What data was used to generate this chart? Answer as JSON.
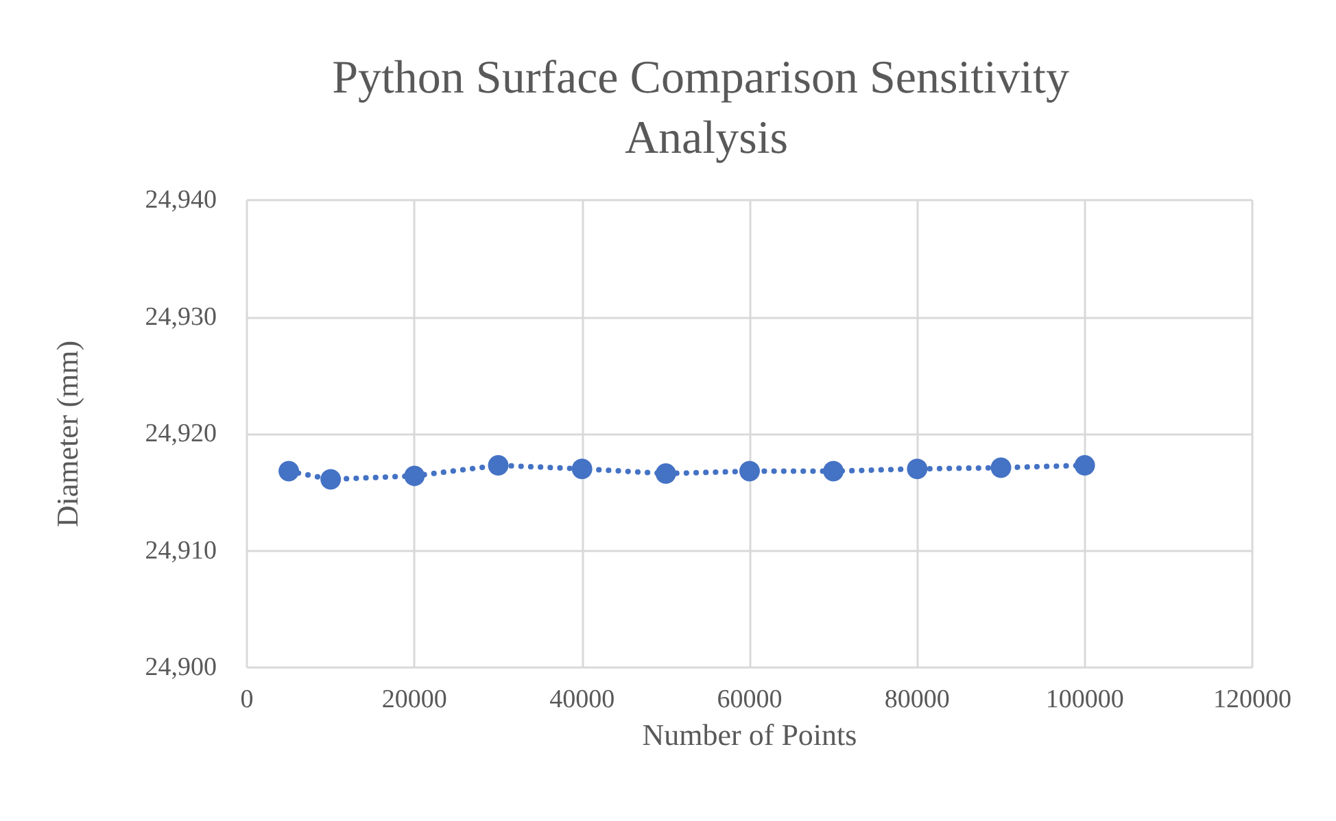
{
  "chart_data": {
    "type": "line",
    "title": "Python Surface Comparison Sensitivity Analysis",
    "xlabel": "Number of Points",
    "ylabel": "Diameter (mm)",
    "x": [
      5000,
      10000,
      20000,
      30000,
      40000,
      50000,
      60000,
      70000,
      80000,
      90000,
      100000
    ],
    "series": [
      {
        "color": "#4472c4",
        "values": [
          24916.8,
          24916.1,
          24916.4,
          24917.3,
          24917.0,
          24916.6,
          24916.8,
          24916.8,
          24917.0,
          24917.1,
          24917.3
        ]
      }
    ],
    "xlim": [
      0,
      120000
    ],
    "xticks": [
      0,
      20000,
      40000,
      60000,
      80000,
      100000,
      120000
    ],
    "ylim": [
      24900,
      24940
    ],
    "yticks": [
      {
        "value": 24900,
        "label": "24,900"
      },
      {
        "value": 24910,
        "label": "24,910"
      },
      {
        "value": 24920,
        "label": "24,920"
      },
      {
        "value": 24930,
        "label": "24,930"
      },
      {
        "value": 24940,
        "label": "24,940"
      }
    ],
    "grid": true,
    "marker": "circle",
    "line_style": "dotted"
  }
}
